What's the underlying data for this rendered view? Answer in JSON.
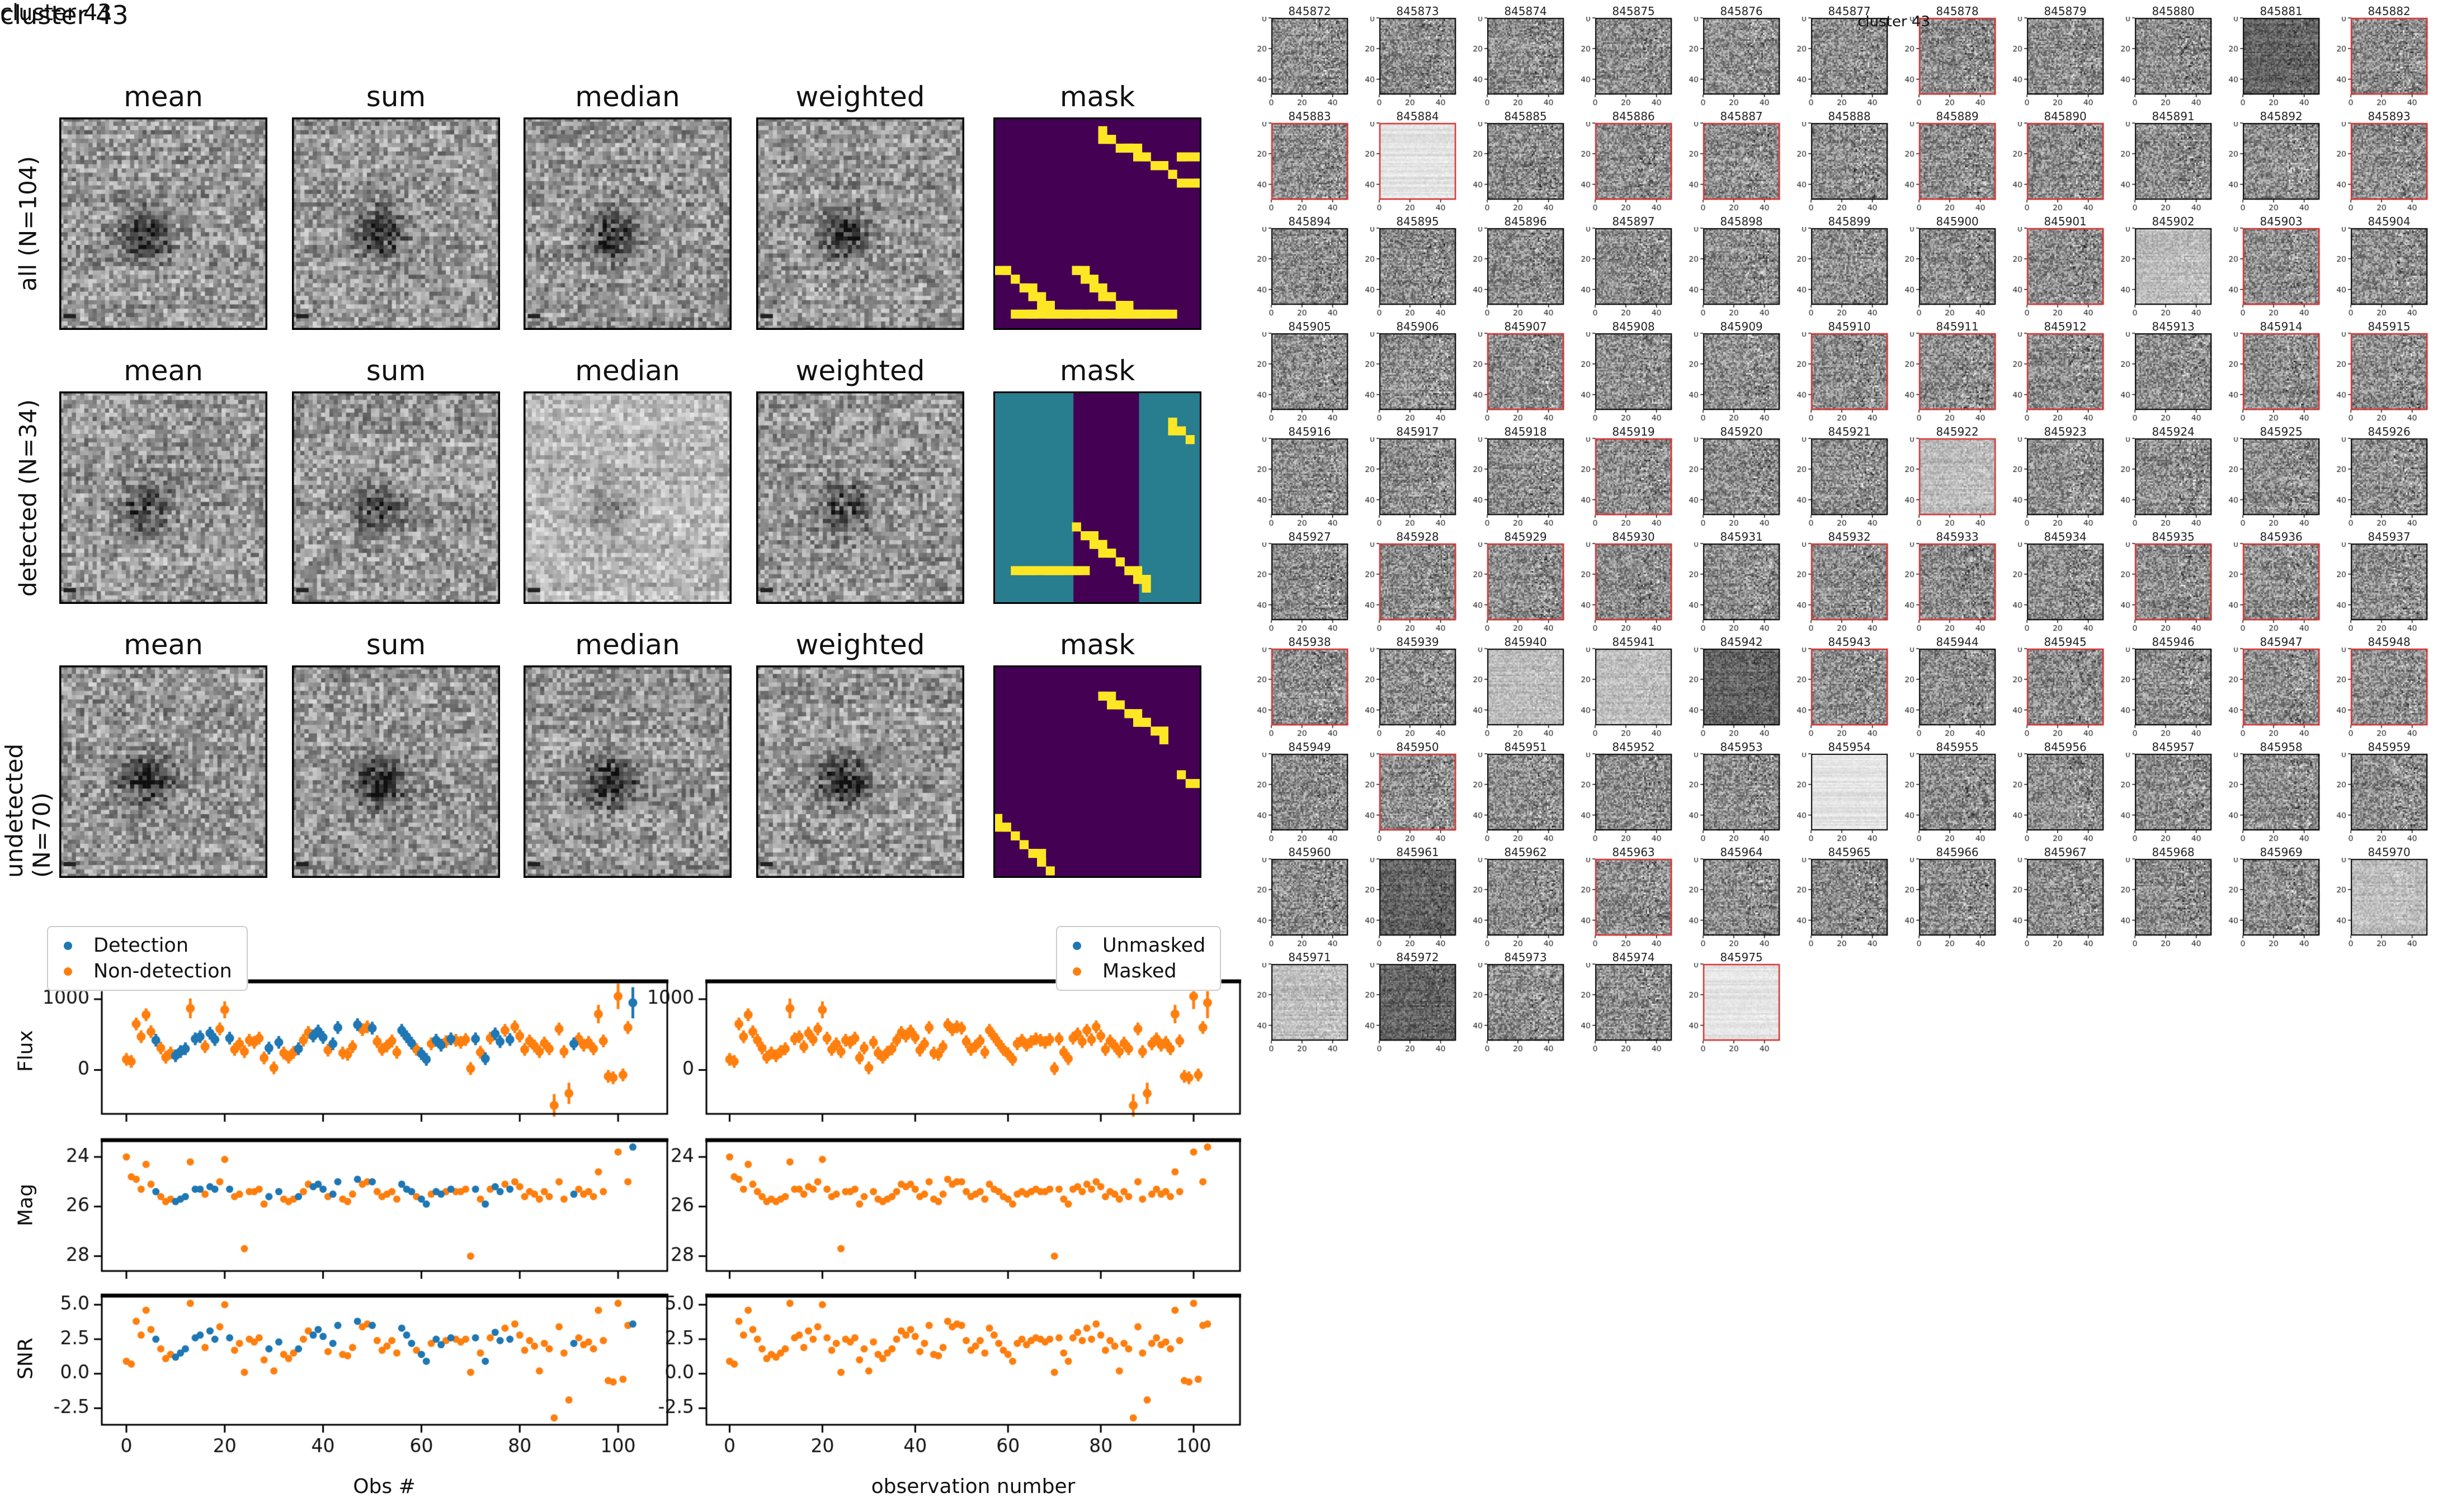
{
  "colors": {
    "detection_blue": "#1f77b4",
    "nondetection_orange": "#ff7f0e",
    "mask_purple": "#440154",
    "mask_teal": "#287d8e",
    "mask_yellow": "#fde725",
    "red_border": "#d62b2b",
    "black_border": "#000000"
  },
  "left_figure": {
    "title": "cluster 43",
    "column_headers": [
      "mean",
      "sum",
      "median",
      "weighted",
      "mask"
    ],
    "rows": [
      {
        "label": "all (N=104)",
        "tones": [
          "n",
          "n",
          "n",
          "n"
        ],
        "blob": 120
      },
      {
        "label": "detected (N=34)",
        "tones": [
          "n",
          "n",
          "light",
          "n"
        ],
        "blob": 95
      },
      {
        "label": "undetected (N=70)",
        "tones": [
          "n",
          "n",
          "n",
          "n"
        ],
        "blob": 130
      }
    ],
    "masks": [
      {
        "bands": [],
        "segs": [
          [
            0.52,
            0.08,
            0.88,
            0.27
          ],
          [
            0.9,
            0.17,
            0.97,
            0.2
          ],
          [
            0.92,
            0.3,
            0.99,
            0.3
          ],
          [
            0.03,
            0.7,
            0.3,
            0.92
          ],
          [
            0.38,
            0.7,
            0.66,
            0.92
          ],
          [
            0.12,
            0.93,
            0.86,
            0.93
          ]
        ]
      },
      {
        "bands": [
          [
            0.0,
            0.385
          ],
          [
            0.7,
            0.3
          ]
        ],
        "segs": [
          [
            0.4,
            0.63,
            0.75,
            0.92
          ],
          [
            0.1,
            0.83,
            0.44,
            0.85
          ],
          [
            0.86,
            0.16,
            0.94,
            0.22
          ]
        ]
      },
      {
        "bands": [],
        "segs": [
          [
            0.52,
            0.13,
            0.82,
            0.33
          ],
          [
            0.92,
            0.53,
            0.98,
            0.55
          ],
          [
            0.02,
            0.73,
            0.27,
            0.95
          ]
        ]
      }
    ]
  },
  "scatter_figure": {
    "title": "cluster 43",
    "left_legend": [
      "Detection",
      "Non-detection"
    ],
    "right_legend": [
      "Unmasked",
      "Masked"
    ],
    "ylabels": [
      "Flux",
      "Mag",
      "SNR"
    ],
    "xlabel_left": "Obs #",
    "xlabel_right": "observation number"
  },
  "chart_data": {
    "type": "scatter",
    "x_is_index": true,
    "n_obs": 104,
    "xlim": [
      -5,
      110
    ],
    "xticks": [
      0,
      20,
      40,
      60,
      80,
      100
    ],
    "flux_ylim": [
      -620,
      1260
    ],
    "flux_yticks": [
      0,
      1000
    ],
    "mag_ylim": [
      23.3,
      28.6
    ],
    "mag_inverted": true,
    "mag_yticks": [
      24,
      26,
      28
    ],
    "snr_ylim": [
      -3.7,
      5.7
    ],
    "snr_yticks": [
      5.0,
      2.5,
      0.0,
      -2.5
    ],
    "flux": [
      150,
      120,
      650,
      470,
      780,
      540,
      420,
      310,
      180,
      240,
      200,
      260,
      300,
      870,
      440,
      470,
      330,
      520,
      430,
      580,
      850,
      450,
      290,
      370,
      260,
      420,
      390,
      450,
      170,
      310,
      30,
      390,
      240,
      180,
      250,
      300,
      420,
      530,
      480,
      550,
      460,
      280,
      370,
      600,
      240,
      220,
      330,
      640,
      570,
      610,
      590,
      400,
      290,
      340,
      410,
      250,
      560,
      470,
      380,
      290,
      230,
      150,
      370,
      420,
      350,
      400,
      440,
      420,
      390,
      430,
      20,
      440,
      250,
      160,
      450,
      510,
      400,
      560,
      430,
      610,
      480,
      290,
      410,
      340,
      260,
      380,
      300,
      -500,
      580,
      260,
      -330,
      370,
      440,
      350,
      390,
      300,
      790,
      410,
      -90,
      -110,
      1040,
      -70,
      600,
      950
    ],
    "flux_err_default": 90,
    "flux_err_overrides": {
      "13": 140,
      "20": 120,
      "87": 160,
      "90": 150,
      "96": 130,
      "100": 180,
      "103": 220
    },
    "mag": [
      24.0,
      24.8,
      24.9,
      25.3,
      24.3,
      25.1,
      25.4,
      25.6,
      25.8,
      25.7,
      25.8,
      25.7,
      25.6,
      24.2,
      25.3,
      25.3,
      25.5,
      25.2,
      25.3,
      25.0,
      24.1,
      25.3,
      25.6,
      25.5,
      27.7,
      25.4,
      25.4,
      25.3,
      25.9,
      25.6,
      null,
      25.4,
      25.7,
      25.8,
      25.7,
      25.6,
      25.4,
      25.1,
      25.2,
      25.1,
      25.3,
      25.6,
      25.5,
      25.0,
      25.7,
      25.8,
      25.5,
      24.9,
      25.1,
      25.0,
      25.0,
      25.4,
      25.6,
      25.5,
      25.4,
      25.7,
      25.1,
      25.3,
      25.4,
      25.6,
      25.7,
      25.9,
      25.5,
      25.4,
      25.5,
      25.4,
      25.3,
      25.4,
      25.4,
      25.3,
      28.0,
      25.3,
      25.7,
      25.9,
      25.3,
      25.2,
      25.4,
      25.1,
      25.3,
      25.0,
      25.2,
      25.6,
      25.4,
      25.5,
      25.7,
      25.4,
      25.6,
      null,
      25.0,
      25.7,
      null,
      25.5,
      25.3,
      25.5,
      25.4,
      25.6,
      24.6,
      25.4,
      null,
      null,
      23.8,
      null,
      25.0,
      23.6
    ],
    "snr": [
      0.9,
      0.7,
      3.8,
      2.8,
      4.6,
      3.2,
      2.5,
      1.8,
      1.1,
      1.4,
      1.2,
      1.5,
      1.8,
      5.1,
      2.6,
      2.8,
      1.9,
      3.1,
      2.5,
      3.4,
      5.0,
      2.6,
      1.7,
      2.2,
      0.1,
      2.5,
      2.3,
      2.6,
      1.0,
      1.8,
      0.2,
      2.3,
      1.4,
      1.1,
      1.5,
      1.8,
      2.5,
      3.1,
      2.8,
      3.2,
      2.7,
      1.6,
      2.2,
      3.5,
      1.4,
      1.3,
      1.9,
      3.8,
      3.4,
      3.6,
      3.5,
      2.4,
      1.7,
      2.0,
      2.4,
      1.5,
      3.3,
      2.8,
      2.2,
      1.7,
      1.4,
      0.9,
      2.2,
      2.5,
      2.1,
      2.4,
      2.6,
      2.5,
      2.3,
      2.5,
      0.1,
      2.6,
      1.5,
      0.9,
      2.6,
      3.0,
      2.4,
      3.3,
      2.5,
      3.6,
      2.8,
      1.7,
      2.4,
      2.0,
      0.2,
      2.2,
      1.8,
      -3.2,
      3.4,
      1.5,
      -1.9,
      2.2,
      2.6,
      2.1,
      2.3,
      1.8,
      4.6,
      2.4,
      -0.5,
      -0.6,
      5.1,
      -0.4,
      3.5,
      3.6
    ],
    "detected_indices": [
      6,
      10,
      11,
      12,
      14,
      15,
      17,
      18,
      21,
      29,
      31,
      35,
      38,
      39,
      40,
      42,
      43,
      47,
      50,
      56,
      57,
      58,
      60,
      61,
      63,
      64,
      66,
      71,
      73,
      75,
      76,
      78,
      91,
      103
    ]
  },
  "thumbnails": {
    "title": "cluster 43",
    "axis_ticks": [
      0,
      20,
      40
    ],
    "ids": [
      845872,
      845873,
      845874,
      845875,
      845876,
      845877,
      845878,
      845879,
      845880,
      845881,
      845882,
      845883,
      845884,
      845885,
      845886,
      845887,
      845888,
      845889,
      845890,
      845891,
      845892,
      845893,
      845894,
      845895,
      845896,
      845897,
      845898,
      845899,
      845900,
      845901,
      845902,
      845903,
      845904,
      845905,
      845906,
      845907,
      845908,
      845909,
      845910,
      845911,
      845912,
      845913,
      845914,
      845915,
      845916,
      845917,
      845918,
      845919,
      845920,
      845921,
      845922,
      845923,
      845924,
      845925,
      845926,
      845927,
      845928,
      845929,
      845930,
      845931,
      845932,
      845933,
      845934,
      845935,
      845936,
      845937,
      845938,
      845939,
      845940,
      845941,
      845942,
      845943,
      845944,
      845945,
      845946,
      845947,
      845948,
      845949,
      845950,
      845951,
      845952,
      845953,
      845954,
      845955,
      845956,
      845957,
      845958,
      845959,
      845960,
      845961,
      845962,
      845963,
      845964,
      845965,
      845966,
      845967,
      845968,
      845969,
      845970,
      845971,
      845972,
      845973,
      845974,
      845975
    ],
    "red_ids": [
      845878,
      845882,
      845883,
      845884,
      845886,
      845887,
      845889,
      845890,
      845893,
      845901,
      845903,
      845907,
      845910,
      845911,
      845912,
      845914,
      845915,
      845919,
      845922,
      845928,
      845929,
      845930,
      845932,
      845933,
      845935,
      845936,
      845938,
      845943,
      845945,
      845947,
      845948,
      845950,
      845963,
      845975
    ],
    "light_ids": [
      845884,
      845954,
      845975
    ],
    "lightish_ids": [
      845902,
      845922,
      845940,
      845941,
      845970,
      845971
    ],
    "dark_ids": [
      845881,
      845942,
      845961,
      845972
    ]
  }
}
